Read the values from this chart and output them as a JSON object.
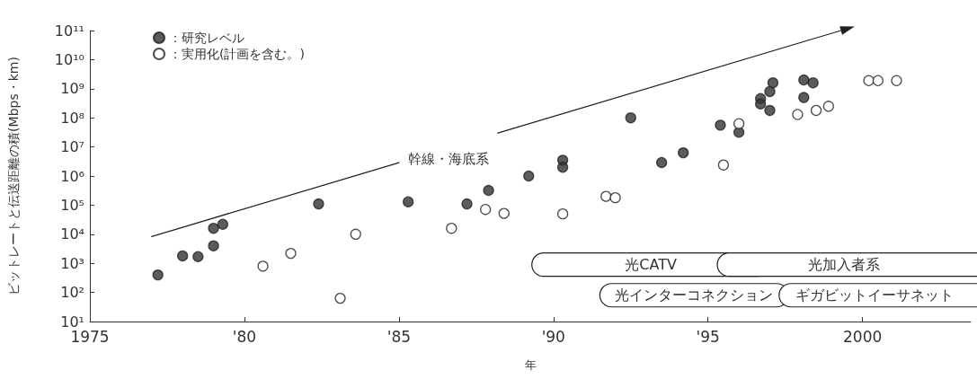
{
  "chart_data": {
    "type": "scatter",
    "xlabel": "年",
    "ylabel": "ビットレートと伝送距離の積(Mbps・km)",
    "xlim": [
      1975,
      2003.5
    ],
    "xticks": [
      {
        "value": 1975,
        "label": "1975"
      },
      {
        "value": 1980,
        "label": "'80"
      },
      {
        "value": 1985,
        "label": "'85"
      },
      {
        "value": 1990,
        "label": "'90"
      },
      {
        "value": 1995,
        "label": "'95"
      },
      {
        "value": 2000,
        "label": "2000"
      }
    ],
    "ylim": [
      10,
      100000000000
    ],
    "yticks": [
      {
        "value": 10,
        "label": "10¹"
      },
      {
        "value": 100,
        "label": "10²"
      },
      {
        "value": 1000,
        "label": "10³"
      },
      {
        "value": 10000,
        "label": "10⁴"
      },
      {
        "value": 100000,
        "label": "10⁵"
      },
      {
        "value": 1000000,
        "label": "10⁶"
      },
      {
        "value": 10000000,
        "label": "10⁷"
      },
      {
        "value": 100000000,
        "label": "10⁸"
      },
      {
        "value": 1000000000,
        "label": "10⁹"
      },
      {
        "value": 10000000000,
        "label": "10¹⁰"
      },
      {
        "value": 100000000000,
        "label": "10¹¹"
      }
    ],
    "log": "y",
    "grid": false,
    "legend": "top left",
    "marker": "circle",
    "series": [
      {
        "name": "：研究レベル",
        "color": "#333333",
        "x": [
          1977.2,
          1978.0,
          1978.5,
          1979.0,
          1979.0,
          1979.3,
          1982.4,
          1985.3,
          1987.2,
          1987.9,
          1989.2,
          1990.3,
          1990.3,
          1992.5,
          1993.5,
          1994.2,
          1995.4,
          1996.0,
          1996.7,
          1996.7,
          1997.0,
          1997.1,
          1997.0,
          1998.1,
          1998.4,
          1998.1
        ],
        "values": [
          400,
          1800,
          1700,
          4000,
          16000,
          22000,
          110000,
          130000,
          110000,
          320000,
          1000000,
          3500000,
          2000000,
          100000000,
          2900000,
          6300000,
          56000000,
          32000000,
          460000000,
          300000000,
          800000000,
          1600000000,
          180000000,
          2000000000,
          1600000000,
          500000000
        ]
      },
      {
        "name": "：実用化(計画を含む。)",
        "color": "#ffffff",
        "x": [
          1980.6,
          1981.5,
          1983.1,
          1983.6,
          1986.7,
          1987.8,
          1988.4,
          1990.3,
          1991.7,
          1992.0,
          1995.5,
          1996.0,
          1997.9,
          1998.5,
          1998.9,
          2000.2,
          2000.5,
          2001.1
        ],
        "values": [
          800,
          2200,
          63,
          10000,
          16000,
          71000,
          52000,
          50000,
          200000,
          180000,
          2400000,
          63000000,
          130000000,
          180000000,
          250000000,
          1900000000,
          1900000000,
          1900000000
        ]
      },
      {
        "name": "幹線・海底系",
        "type": "line",
        "color": "#222222",
        "marker": "none",
        "line_style": "solid",
        "x": [
          1977.0,
          1985.0,
          1986.6,
          1988.2,
          1999.3
        ],
        "values": [
          8300,
          2900000,
          null,
          30000000,
          100000000000
        ]
      }
    ],
    "annotations": [
      "光CATV",
      "光加入者系",
      "光インターコネクション",
      "ギガビットイーサネット"
    ]
  }
}
